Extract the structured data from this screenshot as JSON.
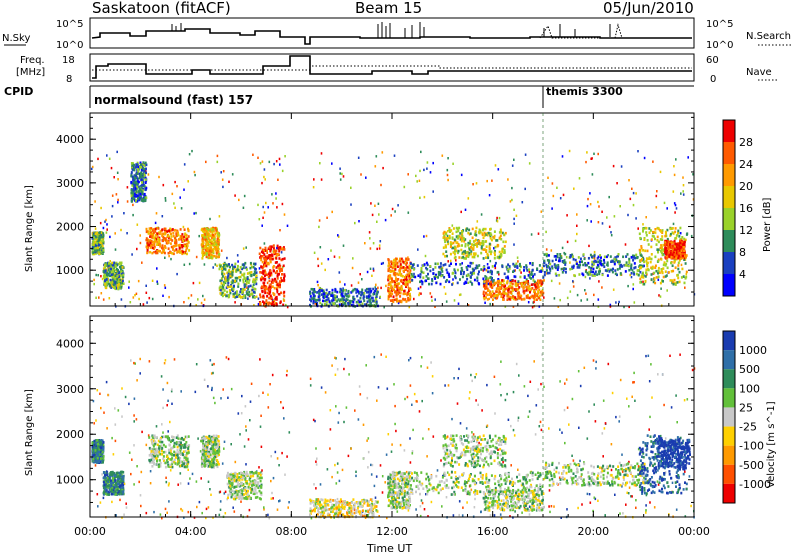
{
  "header": {
    "station": "Saskatoon (fitACF)",
    "beam": "Beam 15",
    "date": "05/Jun/2010"
  },
  "top_panels": {
    "nsky_label": "N.Sky",
    "nsky_ticks": [
      "10^5",
      "10^0"
    ],
    "nsearch_label": "N.Search",
    "freq_label": "Freq.",
    "freq_unit": "[MHz]",
    "freq_ticks": [
      "18",
      "8"
    ],
    "nave_ticks": [
      "60",
      "0"
    ],
    "nave_label": "Nave",
    "cpid_label": "CPID",
    "cpid_modes": [
      {
        "name": "normalsound (fast) 157",
        "start_h": 0
      },
      {
        "name": "themis 3300",
        "start_h": 18.0
      }
    ]
  },
  "chart_data": [
    {
      "type": "heatmap",
      "name": "power",
      "ylabel": "Slant Range [km]",
      "colorbar_label": "Power [dB]",
      "colorbar_ticks": [
        "28",
        "24",
        "20",
        "16",
        "12",
        "8",
        "4"
      ],
      "colorbar_colors": [
        "#ee0000",
        "#ff5a00",
        "#ff9a00",
        "#e8c800",
        "#9ad22a",
        "#2e8c5a",
        "#1a40c0",
        "#0000ff"
      ],
      "ylim": [
        180,
        4600
      ],
      "yticks": [
        "4000",
        "3000",
        "2000",
        "1000"
      ],
      "xlim": [
        0,
        24
      ],
      "regions": [
        {
          "x": [
            0.05,
            0.5
          ],
          "y": [
            1400,
            1900
          ],
          "level": 5
        },
        {
          "x": [
            0.5,
            1.3
          ],
          "y": [
            600,
            1200
          ],
          "level": 5
        },
        {
          "x": [
            1.6,
            2.2
          ],
          "y": [
            2600,
            3500
          ],
          "level": 6
        },
        {
          "x": [
            2.2,
            3.9
          ],
          "y": [
            1400,
            2000
          ],
          "level": 2
        },
        {
          "x": [
            4.4,
            5.1
          ],
          "y": [
            1300,
            2000
          ],
          "level": 3
        },
        {
          "x": [
            5.1,
            6.6
          ],
          "y": [
            400,
            1200
          ],
          "level": 5
        },
        {
          "x": [
            6.7,
            7.7
          ],
          "y": [
            200,
            1600
          ],
          "level": 1
        },
        {
          "x": [
            8.7,
            11.4
          ],
          "y": [
            200,
            600
          ],
          "level": 6
        },
        {
          "x": [
            11.8,
            12.7
          ],
          "y": [
            300,
            1300
          ],
          "level": 2
        },
        {
          "x": [
            12.7,
            18.0
          ],
          "y": [
            700,
            1200
          ],
          "level": 6
        },
        {
          "x": [
            14.0,
            16.5
          ],
          "y": [
            1300,
            2000
          ],
          "level": 4
        },
        {
          "x": [
            15.6,
            18.0
          ],
          "y": [
            350,
            800
          ],
          "level": 2
        },
        {
          "x": [
            18.0,
            22.0
          ],
          "y": [
            900,
            1400
          ],
          "level": 6
        },
        {
          "x": [
            21.8,
            23.7
          ],
          "y": [
            700,
            2000
          ],
          "level": 4
        },
        {
          "x": [
            22.8,
            23.6
          ],
          "y": [
            1300,
            1700
          ],
          "level": 1
        }
      ]
    },
    {
      "type": "heatmap",
      "name": "velocity",
      "ylabel": "Slant Range [km]",
      "colorbar_label": "Velocity [m s^-1]",
      "colorbar_ticks": [
        "1000",
        "500",
        "100",
        "25",
        "-25",
        "-100",
        "-500",
        "-1000"
      ],
      "colorbar_colors": [
        "#1a3cb0",
        "#2f6fa8",
        "#2e8c5a",
        "#62c03a",
        "#c8c8c8",
        "#ffd000",
        "#ff9a00",
        "#ff5000",
        "#ee0000"
      ],
      "ylim": [
        180,
        4600
      ],
      "yticks": [
        "4000",
        "3000",
        "2000",
        "1000"
      ],
      "xlim": [
        0,
        24
      ],
      "regions": [
        {
          "x": [
            2.3,
            3.9
          ],
          "y": [
            1300,
            2000
          ],
          "level": 4
        },
        {
          "x": [
            4.4,
            5.1
          ],
          "y": [
            1300,
            2000
          ],
          "level": 4
        },
        {
          "x": [
            5.4,
            6.8
          ],
          "y": [
            600,
            1200
          ],
          "level": 4
        },
        {
          "x": [
            0.5,
            1.3
          ],
          "y": [
            700,
            1200
          ],
          "level": 2
        },
        {
          "x": [
            0.05,
            0.5
          ],
          "y": [
            1400,
            1900
          ],
          "level": 2
        },
        {
          "x": [
            8.7,
            11.4
          ],
          "y": [
            200,
            600
          ],
          "level": 5
        },
        {
          "x": [
            11.8,
            12.7
          ],
          "y": [
            400,
            1200
          ],
          "level": 4
        },
        {
          "x": [
            12.7,
            18.0
          ],
          "y": [
            700,
            1200
          ],
          "level": 4
        },
        {
          "x": [
            14.0,
            16.5
          ],
          "y": [
            1300,
            2000
          ],
          "level": 4
        },
        {
          "x": [
            15.6,
            18.0
          ],
          "y": [
            350,
            800
          ],
          "level": 4
        },
        {
          "x": [
            18.0,
            22.0
          ],
          "y": [
            900,
            1400
          ],
          "level": 4
        },
        {
          "x": [
            21.8,
            23.7
          ],
          "y": [
            700,
            2000
          ],
          "level": 1
        },
        {
          "x": [
            22.5,
            23.8
          ],
          "y": [
            1300,
            1900
          ],
          "level": 0
        }
      ]
    }
  ],
  "xaxis": {
    "label": "Time UT",
    "ticks": [
      "00:00",
      "04:00",
      "08:00",
      "12:00",
      "16:00",
      "20:00",
      "00:00"
    ]
  }
}
